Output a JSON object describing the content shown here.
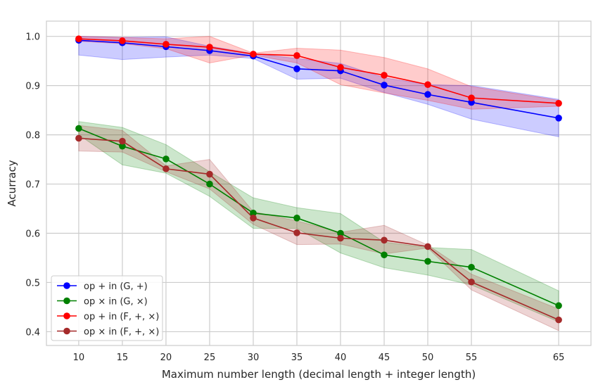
{
  "chart_data": {
    "type": "line",
    "title": "",
    "xlabel": "Maximum number length (decimal length + integer length)",
    "ylabel": "Acurracy",
    "x": [
      10,
      15,
      20,
      25,
      30,
      35,
      40,
      45,
      50,
      55,
      65
    ],
    "xticks": [
      "10",
      "15",
      "20",
      "25",
      "30",
      "35",
      "40",
      "45",
      "50",
      "55",
      "65"
    ],
    "yticks": [
      "0.4",
      "0.5",
      "0.6",
      "0.7",
      "0.8",
      "0.9",
      "1.0"
    ],
    "xlim": [
      6.3,
      68.7
    ],
    "ylim": [
      0.372,
      1.031
    ],
    "grid": true,
    "legend_position": "lower-left",
    "series": [
      {
        "name": "op + in (G, +)",
        "color": "#0000ff",
        "values": [
          0.992,
          0.987,
          0.979,
          0.971,
          0.96,
          0.934,
          0.93,
          0.901,
          0.882,
          0.866,
          0.834
        ],
        "lower": [
          0.962,
          0.953,
          0.958,
          0.962,
          0.955,
          0.913,
          0.915,
          0.886,
          0.862,
          0.832,
          0.796
        ],
        "upper": [
          1.0,
          0.998,
          0.999,
          0.98,
          0.965,
          0.955,
          0.945,
          0.916,
          0.902,
          0.9,
          0.872
        ]
      },
      {
        "name": "op × in (G, ×)",
        "color": "#008000",
        "values": [
          0.813,
          0.777,
          0.751,
          0.7,
          0.641,
          0.631,
          0.6,
          0.556,
          0.543,
          0.531,
          0.453
        ],
        "lower": [
          0.8,
          0.739,
          0.722,
          0.675,
          0.61,
          0.61,
          0.56,
          0.53,
          0.515,
          0.495,
          0.42
        ],
        "upper": [
          0.827,
          0.815,
          0.78,
          0.725,
          0.672,
          0.652,
          0.64,
          0.582,
          0.571,
          0.567,
          0.483
        ]
      },
      {
        "name": "op + in (F, +, ×)",
        "color": "#ff0000",
        "values": [
          0.995,
          0.991,
          0.984,
          0.978,
          0.964,
          0.961,
          0.937,
          0.921,
          0.902,
          0.875,
          0.864
        ],
        "lower": [
          0.99,
          0.985,
          0.975,
          0.946,
          0.962,
          0.946,
          0.902,
          0.885,
          0.87,
          0.852,
          0.858
        ],
        "upper": [
          1.0,
          0.998,
          0.995,
          1.0,
          0.966,
          0.976,
          0.972,
          0.957,
          0.934,
          0.898,
          0.87
        ]
      },
      {
        "name": "op × in (F, +, ×)",
        "color": "#a52a2a",
        "values": [
          0.793,
          0.787,
          0.731,
          0.72,
          0.631,
          0.601,
          0.59,
          0.586,
          0.573,
          0.501,
          0.424
        ],
        "lower": [
          0.767,
          0.765,
          0.725,
          0.69,
          0.618,
          0.577,
          0.578,
          0.558,
          0.57,
          0.485,
          0.402
        ],
        "upper": [
          0.819,
          0.809,
          0.737,
          0.75,
          0.644,
          0.625,
          0.602,
          0.616,
          0.576,
          0.517,
          0.446
        ]
      }
    ]
  }
}
